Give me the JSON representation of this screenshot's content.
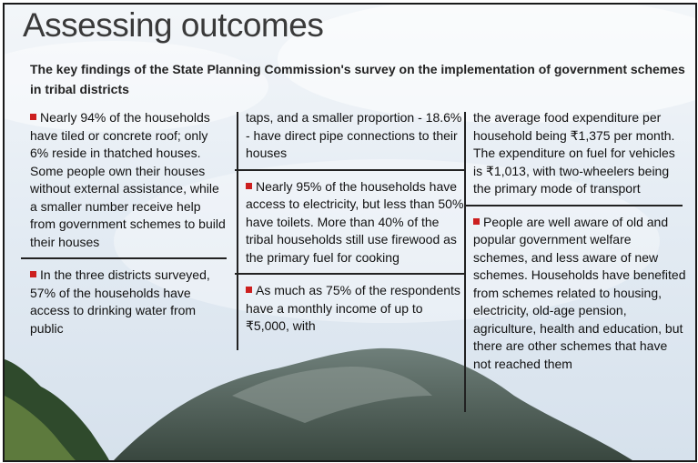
{
  "title": "Assessing outcomes",
  "subtitle": "The key findings of the State Planning Commission's survey on the implementation of government schemes in tribal districts",
  "columns": {
    "c1": {
      "b1": "Nearly 94% of the households have tiled or concrete roof; only 6% reside in thatched houses. Some people own their houses without external assistance, while a smaller number receive help from government schemes to build their houses",
      "b2": "In the three districts surveyed, 57% of the households have access to drinking water from public"
    },
    "c2": {
      "cont": "taps, and a smaller proportion - 18.6% - have direct pipe connections to their houses",
      "b3": "Nearly 95% of the households have access to electricity, but less than 50% have toilets. More than 40% of the tribal households still use firewood as the primary fuel for cooking",
      "b4": "As much as 75% of the respondents have a monthly income of up to ₹5,000, with"
    },
    "c3": {
      "cont": "the average food expenditure per household being ₹1,375 per month. The expenditure on fuel for vehicles is ₹1,013, with two-wheelers being the primary mode of transport",
      "b5": "People are well aware of old and popular government welfare schemes, and less aware of new schemes. Households have benefited from schemes related to housing, electricity, old-age pension, agriculture, health and education, but there are other schemes that have not reached them"
    }
  },
  "colors": {
    "bullet": "#cc1f1f",
    "rule": "#222222",
    "title": "#3a3a3a"
  }
}
